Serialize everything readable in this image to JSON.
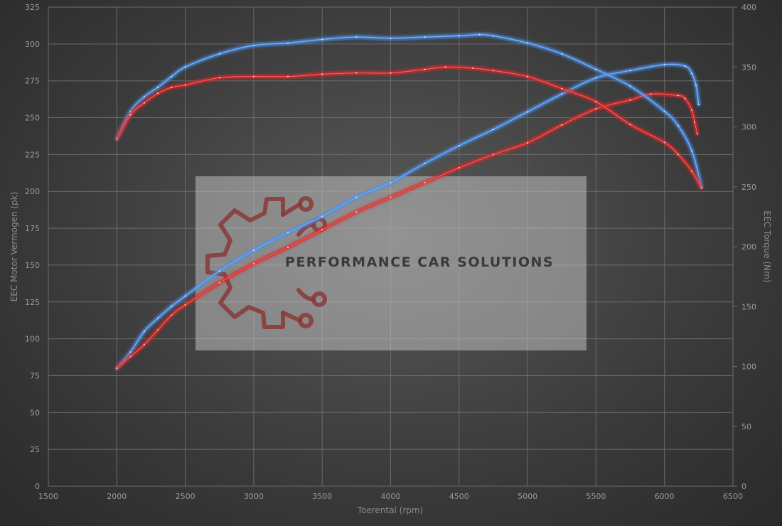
{
  "chart_data": {
    "type": "line",
    "xlabel": "Toerental (rpm)",
    "ylabel_left": "EEC Motor Vermogen (pk)",
    "ylabel_right": "EEC Torque (Nm)",
    "xlim": [
      1500,
      6500
    ],
    "ylim_left": [
      0,
      325
    ],
    "ylim_right": [
      0,
      400
    ],
    "x_ticks": [
      1500,
      2000,
      2500,
      3000,
      3500,
      4000,
      4500,
      5000,
      5500,
      6000,
      6500
    ],
    "y_left_ticks": [
      0,
      25,
      50,
      75,
      100,
      125,
      150,
      175,
      200,
      225,
      250,
      275,
      300,
      325
    ],
    "y_right_ticks": [
      0,
      50,
      100,
      150,
      200,
      250,
      300,
      350,
      400
    ],
    "grid": true,
    "colors": {
      "blue": "#4a90e8",
      "red": "#e02828"
    },
    "series": [
      {
        "axis": "left",
        "color": "blue",
        "points": [
          [
            2000,
            80
          ],
          [
            2100,
            91
          ],
          [
            2200,
            105
          ],
          [
            2300,
            114
          ],
          [
            2400,
            122
          ],
          [
            2500,
            129
          ],
          [
            2750,
            146
          ],
          [
            3000,
            160
          ],
          [
            3250,
            172
          ],
          [
            3500,
            183
          ],
          [
            3750,
            196
          ],
          [
            4000,
            206
          ],
          [
            4250,
            219
          ],
          [
            4500,
            231
          ],
          [
            4750,
            242
          ],
          [
            5000,
            254
          ],
          [
            5250,
            266
          ],
          [
            5500,
            277
          ],
          [
            5750,
            282
          ],
          [
            6000,
            286
          ],
          [
            6150,
            285
          ],
          [
            6200,
            280
          ],
          [
            6230,
            272
          ],
          [
            6250,
            259
          ]
        ]
      },
      {
        "axis": "left",
        "color": "red",
        "points": [
          [
            2000,
            80
          ],
          [
            2100,
            88
          ],
          [
            2200,
            96
          ],
          [
            2300,
            106
          ],
          [
            2400,
            116
          ],
          [
            2500,
            123
          ],
          [
            2750,
            138
          ],
          [
            3000,
            151
          ],
          [
            3250,
            162
          ],
          [
            3500,
            174
          ],
          [
            3750,
            186
          ],
          [
            4000,
            196
          ],
          [
            4250,
            206
          ],
          [
            4500,
            216
          ],
          [
            4750,
            225
          ],
          [
            5000,
            233
          ],
          [
            5250,
            245
          ],
          [
            5500,
            256
          ],
          [
            5750,
            262
          ],
          [
            5900,
            266
          ],
          [
            6100,
            265
          ],
          [
            6150,
            263
          ],
          [
            6200,
            255
          ],
          [
            6220,
            247
          ],
          [
            6240,
            239
          ]
        ]
      },
      {
        "axis": "right",
        "color": "blue",
        "points": [
          [
            2000,
            290
          ],
          [
            2100,
            313
          ],
          [
            2200,
            325
          ],
          [
            2300,
            333
          ],
          [
            2400,
            342
          ],
          [
            2500,
            350
          ],
          [
            2750,
            361
          ],
          [
            3000,
            368
          ],
          [
            3250,
            370
          ],
          [
            3500,
            373
          ],
          [
            3750,
            375
          ],
          [
            4000,
            374
          ],
          [
            4250,
            375
          ],
          [
            4500,
            376
          ],
          [
            4650,
            377
          ],
          [
            4750,
            376
          ],
          [
            5000,
            370
          ],
          [
            5250,
            361
          ],
          [
            5500,
            348
          ],
          [
            5750,
            334
          ],
          [
            6000,
            313
          ],
          [
            6100,
            301
          ],
          [
            6200,
            280
          ],
          [
            6270,
            250
          ]
        ]
      },
      {
        "axis": "right",
        "color": "red",
        "points": [
          [
            2000,
            290
          ],
          [
            2100,
            310
          ],
          [
            2200,
            320
          ],
          [
            2300,
            328
          ],
          [
            2400,
            333
          ],
          [
            2500,
            335
          ],
          [
            2750,
            341
          ],
          [
            3000,
            342
          ],
          [
            3250,
            342
          ],
          [
            3500,
            344
          ],
          [
            3750,
            345
          ],
          [
            4000,
            345
          ],
          [
            4250,
            348
          ],
          [
            4400,
            350
          ],
          [
            4600,
            349
          ],
          [
            4750,
            347
          ],
          [
            5000,
            342
          ],
          [
            5250,
            332
          ],
          [
            5500,
            321
          ],
          [
            5750,
            302
          ],
          [
            6000,
            287
          ],
          [
            6100,
            277
          ],
          [
            6200,
            263
          ],
          [
            6270,
            249
          ]
        ]
      }
    ]
  },
  "watermark": {
    "text": "PERFORMANCE CAR SOLUTIONS"
  }
}
